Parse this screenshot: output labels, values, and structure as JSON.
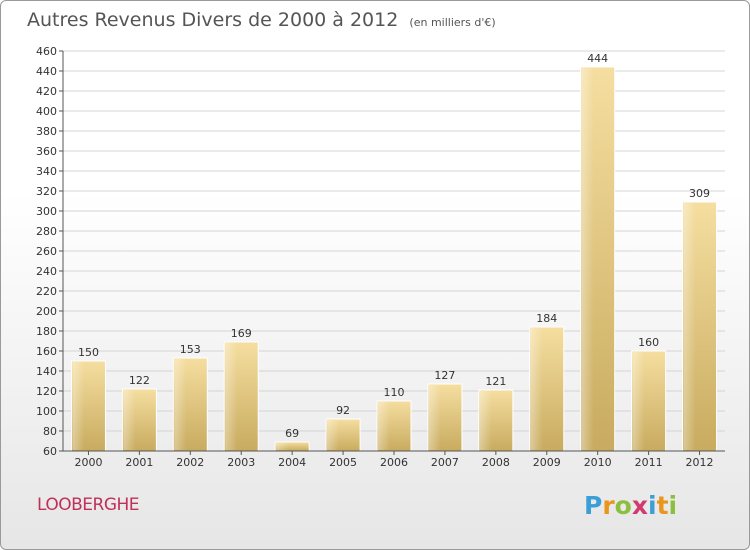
{
  "header": {
    "title": "Autres Revenus Divers de 2000 à 2012",
    "subtitle": "(en milliers d'€)"
  },
  "commune": "LOOBERGHE",
  "logo": {
    "text": "Proxiti",
    "letters": [
      {
        "ch": "P",
        "color": "#3a9fd6"
      },
      {
        "ch": "r",
        "color": "#e8961c"
      },
      {
        "ch": "o",
        "color": "#8cbf3f"
      },
      {
        "ch": "x",
        "color": "#d23a6f"
      },
      {
        "ch": "i",
        "color": "#3a9fd6"
      },
      {
        "ch": "t",
        "color": "#e8961c"
      },
      {
        "ch": "i",
        "color": "#8cbf3f"
      }
    ]
  },
  "chart_data": {
    "type": "bar",
    "categories": [
      "2000",
      "2001",
      "2002",
      "2003",
      "2004",
      "2005",
      "2006",
      "2007",
      "2008",
      "2009",
      "2010",
      "2011",
      "2012"
    ],
    "values": [
      150,
      122,
      153,
      169,
      69,
      92,
      110,
      127,
      121,
      184,
      444,
      160,
      309
    ],
    "title": "Autres Revenus Divers de 2000 à 2012",
    "subtitle": "(en milliers d'€)",
    "xlabel": "",
    "ylabel": "",
    "ylim": [
      60,
      460
    ],
    "yticks": [
      60,
      80,
      100,
      120,
      140,
      160,
      180,
      200,
      220,
      240,
      260,
      280,
      300,
      320,
      340,
      360,
      380,
      400,
      420,
      440,
      460
    ],
    "grid": true,
    "legend": "none",
    "colors": {
      "bar_light": "#f5dea0",
      "bar_dark": "#c8ab5f",
      "grid": "#d4d4d4",
      "axis": "#555555"
    }
  }
}
